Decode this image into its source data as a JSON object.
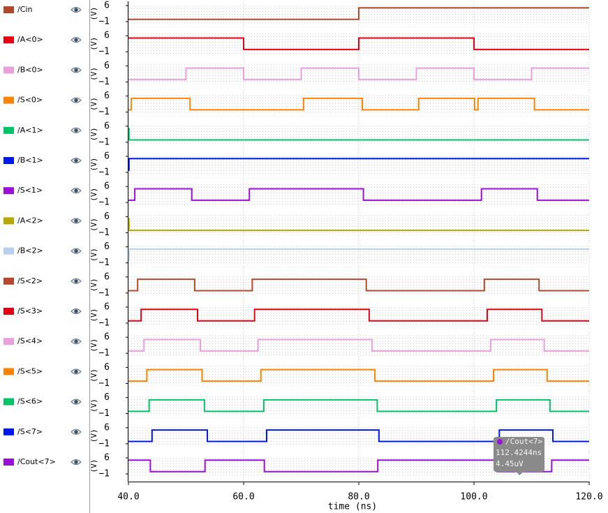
{
  "chart_data": {
    "type": "step-waveform",
    "step": "post",
    "xlabel": "time (ns)",
    "ylabel": "(V)",
    "xlim": [
      40,
      120
    ],
    "xticks": [
      {
        "value": 40,
        "label": "40.0"
      },
      {
        "value": 60,
        "label": "60.0"
      },
      {
        "value": 80,
        "label": "80.0"
      },
      {
        "value": 100,
        "label": "100.0"
      },
      {
        "value": 120,
        "label": "120.0"
      }
    ],
    "ylim": [
      -1,
      6
    ],
    "yticks": [
      6,
      {
        "value": -1,
        "label": "−1"
      }
    ],
    "grid": true,
    "series": [
      {
        "name": "/Cin",
        "color": "#b5482b",
        "x": [
          40,
          80
        ],
        "values": [
          0,
          5
        ]
      },
      {
        "name": "/A<0>",
        "color": "#e60012",
        "x": [
          40,
          60,
          80,
          100
        ],
        "values": [
          5,
          0,
          5,
          0
        ]
      },
      {
        "name": "/B<0>",
        "color": "#eaa0dc",
        "x": [
          40,
          50,
          60,
          70,
          80,
          90,
          100,
          110
        ],
        "values": [
          0,
          5,
          0,
          5,
          0,
          5,
          0,
          5
        ]
      },
      {
        "name": "/S<0>",
        "color": "#ff8200",
        "x": [
          40,
          40.5,
          50.7,
          70.4,
          80.6,
          90.4,
          100.1,
          100.7,
          110.5
        ],
        "values": [
          0,
          5,
          0,
          5,
          0,
          5,
          0,
          5,
          0
        ]
      },
      {
        "name": "/A<1>",
        "color": "#00c468",
        "x": [
          40,
          40.1
        ],
        "values": [
          5,
          0
        ]
      },
      {
        "name": "/B<1>",
        "color": "#0018f0",
        "x": [
          40,
          40.1
        ],
        "values": [
          0,
          5
        ]
      },
      {
        "name": "/S<1>",
        "color": "#9b10d8",
        "x": [
          40,
          41.1,
          51.0,
          61.0,
          80.8,
          101.3,
          111.0
        ],
        "values": [
          0,
          5,
          0,
          5,
          0,
          5,
          0
        ]
      },
      {
        "name": "/A<2>",
        "color": "#b8a800",
        "x": [
          40,
          40.1
        ],
        "values": [
          5,
          0
        ]
      },
      {
        "name": "/B<2>",
        "color": "#b8cfee",
        "x": [
          40,
          40.1
        ],
        "values": [
          0,
          5
        ]
      },
      {
        "name": "/S<2>",
        "color": "#b5482b",
        "x": [
          40,
          41.6,
          51.5,
          61.5,
          81.3,
          101.8,
          111.3
        ],
        "values": [
          0,
          5,
          0,
          5,
          0,
          5,
          0
        ]
      },
      {
        "name": "/S<3>",
        "color": "#e60012",
        "x": [
          40,
          42.2,
          52.0,
          61.9,
          81.8,
          102.3,
          111.8
        ],
        "values": [
          0,
          5,
          0,
          5,
          0,
          5,
          0
        ]
      },
      {
        "name": "/S<4>",
        "color": "#eaa0dc",
        "x": [
          40,
          42.7,
          52.5,
          62.5,
          82.3,
          102.9,
          112.2
        ],
        "values": [
          0,
          5,
          0,
          5,
          0,
          5,
          0
        ]
      },
      {
        "name": "/S<5>",
        "color": "#ff8200",
        "x": [
          40,
          43.2,
          52.8,
          63.0,
          82.8,
          103.4,
          112.7
        ],
        "values": [
          0,
          5,
          0,
          5,
          0,
          5,
          0
        ]
      },
      {
        "name": "/S<6>",
        "color": "#00c468",
        "x": [
          40,
          43.6,
          53.2,
          63.5,
          83.2,
          103.9,
          113.2
        ],
        "values": [
          0,
          5,
          0,
          5,
          0,
          5,
          0
        ]
      },
      {
        "name": "/S<7>",
        "color": "#0018f0",
        "x": [
          40,
          44.1,
          53.7,
          64.0,
          83.5,
          104.4,
          113.7
        ],
        "values": [
          0,
          5,
          0,
          5,
          0,
          5,
          0
        ]
      },
      {
        "name": "/Cout<7>",
        "color": "#9b10d8",
        "x": [
          40,
          43.8,
          53.3,
          63.6,
          83.3,
          104.0,
          113.5
        ],
        "values": [
          5,
          0,
          5,
          0,
          5,
          0,
          5
        ]
      }
    ],
    "tooltip": {
      "name": "/Cout<7>",
      "time": "112.4244ns",
      "value": "4.45uV"
    }
  }
}
